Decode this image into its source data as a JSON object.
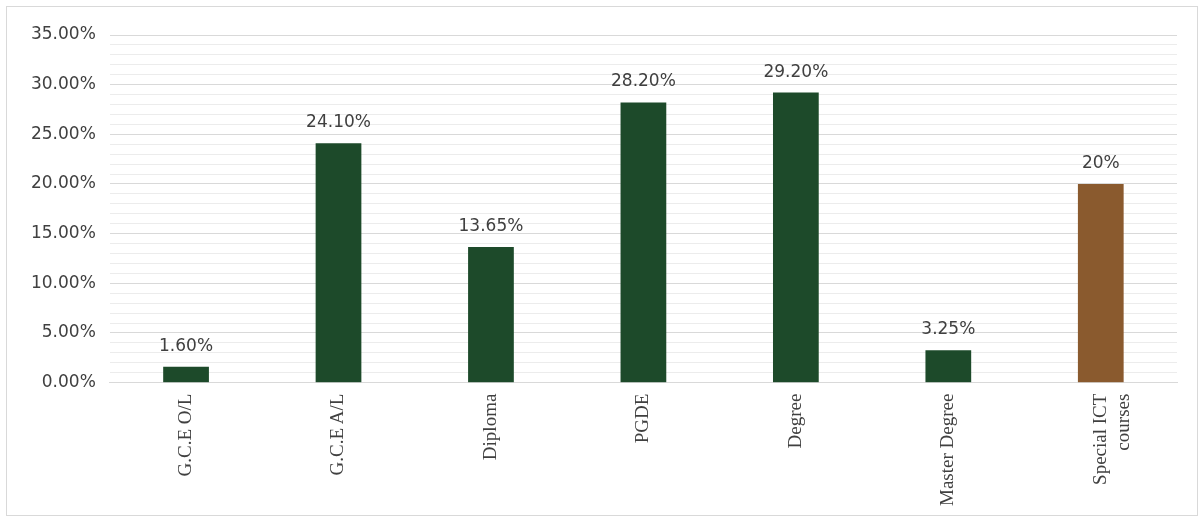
{
  "chart_data": {
    "type": "bar",
    "categories": [
      "G.C.E O/L",
      "G.C.E A/L",
      "Diploma",
      "PGDE",
      "Degree",
      "Master Degree",
      "Special ICT courses"
    ],
    "values": [
      1.6,
      24.1,
      13.65,
      28.2,
      29.2,
      3.25,
      20
    ],
    "value_labels": [
      "1.60%",
      "24.10%",
      "13.65%",
      "28.20%",
      "29.20%",
      "3.25%",
      "20%"
    ],
    "colors": [
      "#1d4a2a",
      "#1d4a2a",
      "#1d4a2a",
      "#1d4a2a",
      "#1d4a2a",
      "#1d4a2a",
      "#8a5a2e"
    ],
    "ylim": [
      0,
      35
    ],
    "yticks": [
      {
        "value": 0,
        "label": "0.00%"
      },
      {
        "value": 1,
        "label": null
      },
      {
        "value": 2,
        "label": null
      },
      {
        "value": 3,
        "label": null
      },
      {
        "value": 4,
        "label": null
      },
      {
        "value": 5,
        "label": "5.00%"
      },
      {
        "value": 6,
        "label": null
      },
      {
        "value": 7,
        "label": null
      },
      {
        "value": 8,
        "label": null
      },
      {
        "value": 9,
        "label": null
      },
      {
        "value": 10,
        "label": "10.00%"
      },
      {
        "value": 11,
        "label": null
      },
      {
        "value": 12,
        "label": null
      },
      {
        "value": 13,
        "label": null
      },
      {
        "value": 14,
        "label": null
      },
      {
        "value": 15,
        "label": "15.00%"
      },
      {
        "value": 16,
        "label": null
      },
      {
        "value": 17,
        "label": null
      },
      {
        "value": 18,
        "label": null
      },
      {
        "value": 19,
        "label": null
      },
      {
        "value": 20,
        "label": "20.00%"
      },
      {
        "value": 21,
        "label": null
      },
      {
        "value": 22,
        "label": null
      },
      {
        "value": 23,
        "label": null
      },
      {
        "value": 24,
        "label": null
      },
      {
        "value": 25,
        "label": "25.00%"
      },
      {
        "value": 26,
        "label": null
      },
      {
        "value": 27,
        "label": null
      },
      {
        "value": 28,
        "label": null
      },
      {
        "value": 29,
        "label": null
      },
      {
        "value": 30,
        "label": "30.00%"
      },
      {
        "value": 31,
        "label": null
      },
      {
        "value": 32,
        "label": null
      },
      {
        "value": 33,
        "label": null
      },
      {
        "value": 34,
        "label": null
      },
      {
        "value": 35,
        "label": "35.00%"
      }
    ],
    "grid": "y"
  }
}
